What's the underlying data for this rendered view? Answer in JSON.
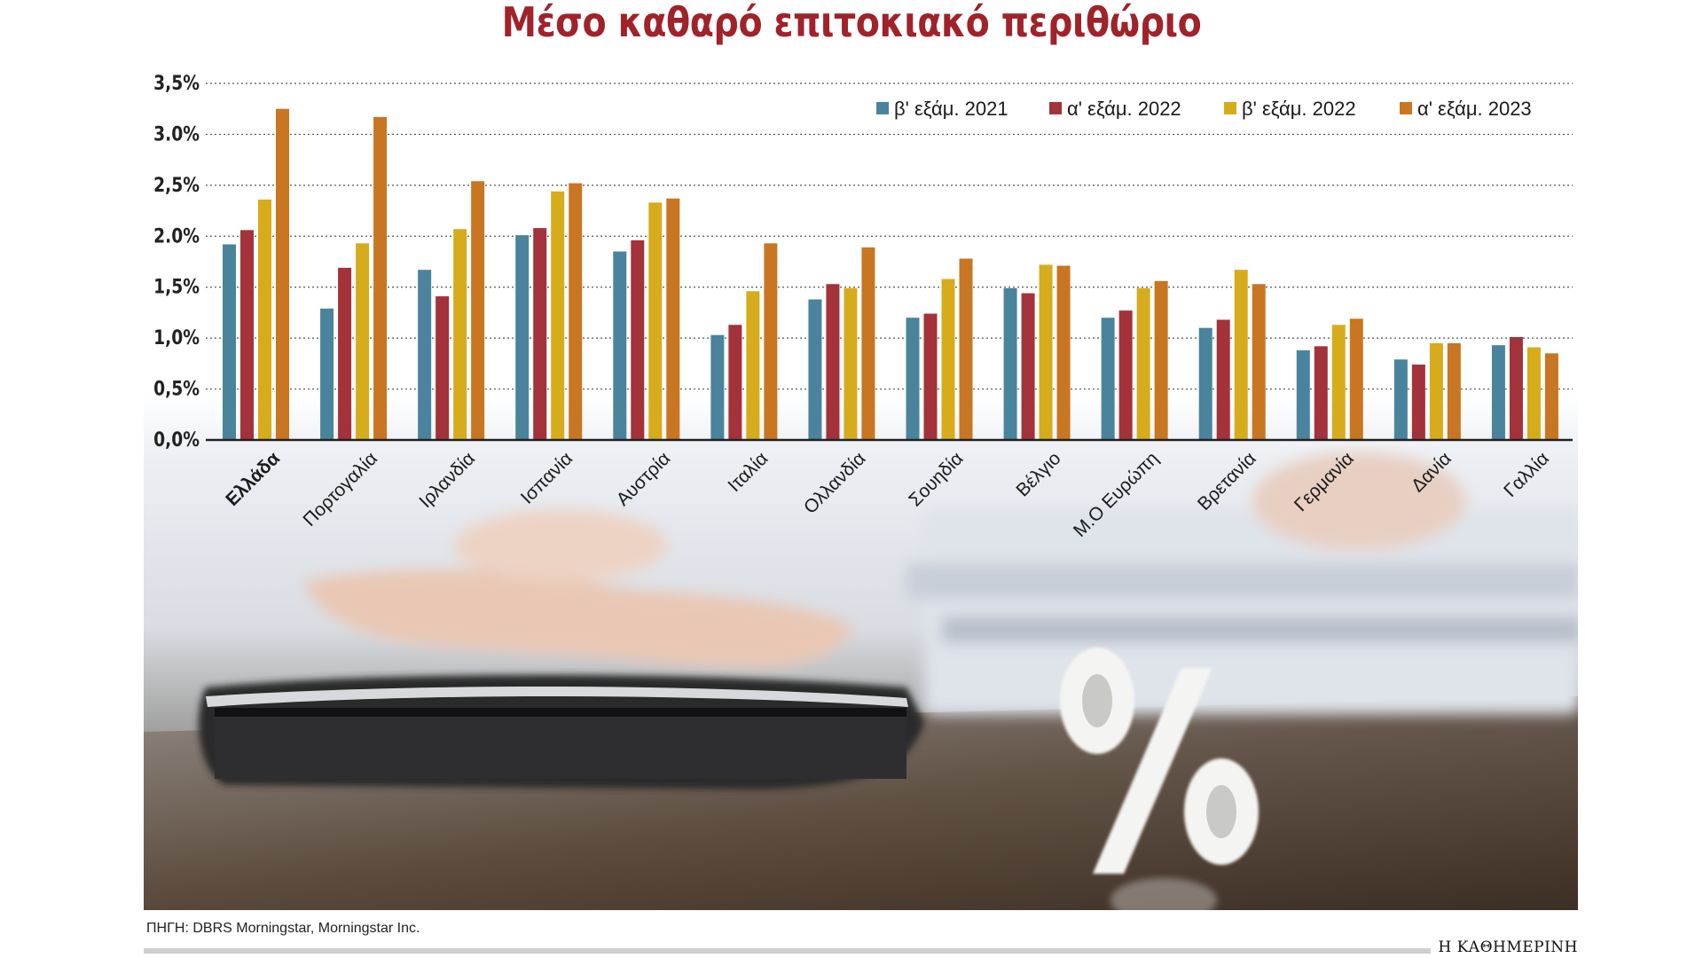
{
  "chart_data": {
    "type": "bar",
    "title": "Μέσο καθαρό επιτοκιακό περιθώριο",
    "categories": [
      "Ελλάδα",
      "Πορτογαλία",
      "Ιρλανδία",
      "Ισπανία",
      "Αυστρία",
      "Ιταλία",
      "Ολλανδία",
      "Σουηδία",
      "Βέλγιο",
      "Μ.Ο Ευρώπη",
      "Βρετανία",
      "Γερμανία",
      "Δανία",
      "Γαλλία"
    ],
    "highlight_category": "Ελλάδα",
    "series": [
      {
        "name": "β' εξάμ. 2021",
        "color": "#4a849c",
        "values": [
          1.92,
          1.29,
          1.67,
          2.01,
          1.85,
          1.03,
          1.38,
          1.2,
          1.49,
          1.2,
          1.1,
          0.88,
          0.79,
          0.93
        ]
      },
      {
        "name": "α' εξάμ. 2022",
        "color": "#a3323a",
        "values": [
          2.06,
          1.69,
          1.41,
          2.08,
          1.96,
          1.13,
          1.53,
          1.24,
          1.44,
          1.27,
          1.18,
          0.92,
          0.74,
          1.01
        ]
      },
      {
        "name": "β' εξάμ. 2022",
        "color": "#d6ac1c",
        "values": [
          2.36,
          1.93,
          2.07,
          2.44,
          2.33,
          1.46,
          1.49,
          1.58,
          1.72,
          1.49,
          1.67,
          1.13,
          0.95,
          0.91
        ]
      },
      {
        "name": "α' εξάμ. 2023",
        "color": "#c87621",
        "values": [
          3.25,
          3.17,
          2.54,
          2.52,
          2.37,
          1.93,
          1.89,
          1.78,
          1.71,
          1.56,
          1.53,
          1.19,
          0.95,
          0.85
        ]
      }
    ],
    "y_ticks": [
      {
        "value": 0,
        "label": "0,0%"
      },
      {
        "value": 0.5,
        "label": "0,5%"
      },
      {
        "value": 1.0,
        "label": "1,0%"
      },
      {
        "value": 1.5,
        "label": "1,5%"
      },
      {
        "value": 2.0,
        "label": "2.0%"
      },
      {
        "value": 2.5,
        "label": "2,5%"
      },
      {
        "value": 3.0,
        "label": "3.0%"
      },
      {
        "value": 3.5,
        "label": "3,5%"
      }
    ],
    "ylim": [
      0,
      3.5
    ],
    "grid": true,
    "legend_position": "top-right",
    "xlabel": "",
    "ylabel": ""
  },
  "colors": {
    "title": "#a0222b",
    "axis": "#222222",
    "grid": "#555555"
  },
  "footer": {
    "source": "ΠΗΓΗ: DBRS Morningstar, Morningstar Inc.",
    "brand": "Η ΚΑΘΗΜΕΡΙΝΗ"
  }
}
